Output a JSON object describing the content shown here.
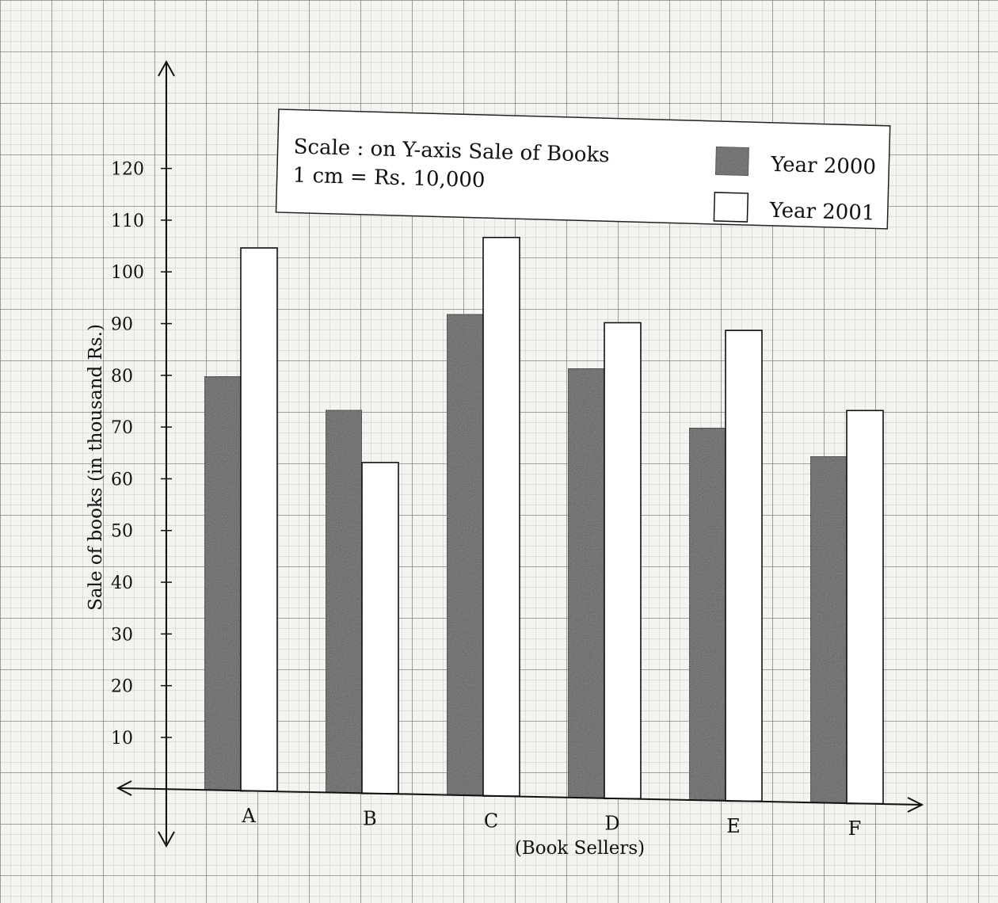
{
  "chart_data": {
    "type": "bar",
    "categories": [
      "A",
      "B",
      "C",
      "D",
      "E",
      "F"
    ],
    "series": [
      {
        "name": "Year 2000",
        "values": [
          80,
          74,
          93,
          83,
          72,
          67
        ],
        "color": "#585858"
      },
      {
        "name": "Year 2001",
        "values": [
          105,
          64,
          108,
          92,
          91,
          76
        ],
        "color": "#ffffff"
      }
    ],
    "xlabel": "(Book Sellers)",
    "ylabel": "Sale of books (in thousand Rs.)",
    "ylim": [
      0,
      120
    ],
    "yticks": [
      10,
      20,
      30,
      40,
      50,
      60,
      70,
      80,
      90,
      100,
      110,
      120
    ],
    "scale_note": [
      "Scale : on Y-axis Sale of Books",
      "1 cm = Rs.  10,000"
    ],
    "grid": true,
    "legend_position": "top-right"
  }
}
